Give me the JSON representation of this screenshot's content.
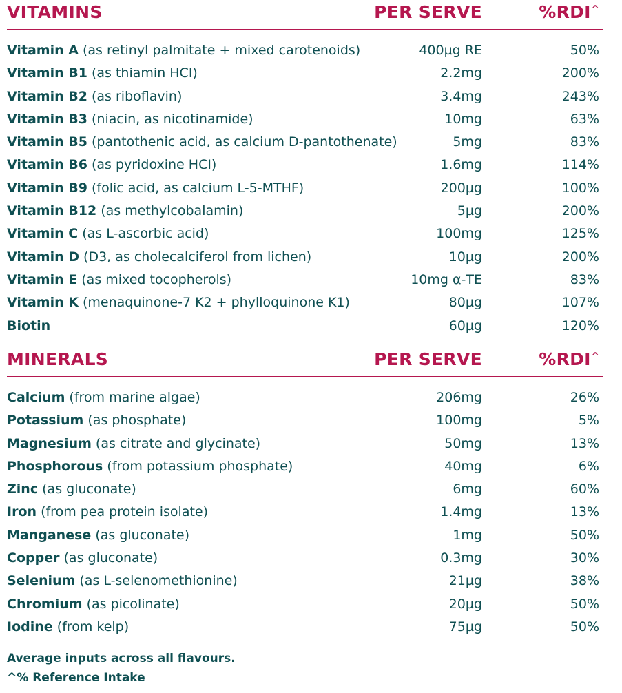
{
  "vitamins": {
    "header": {
      "title": "VITAMINS",
      "per_serve": "PER SERVE",
      "rdi": "%RDI",
      "rdi_mark": "^"
    },
    "rows": [
      {
        "name": "Vitamin A",
        "desc": " (as retinyl palmitate + mixed carotenoids)",
        "serve": "400µg RE",
        "rdi": "50%"
      },
      {
        "name": "Vitamin B1",
        "desc": " (as thiamin HCI)",
        "serve": "2.2mg",
        "rdi": "200%"
      },
      {
        "name": "Vitamin B2",
        "desc": " (as riboflavin)",
        "serve": "3.4mg",
        "rdi": "243%"
      },
      {
        "name": "Vitamin B3",
        "desc": " (niacin, as nicotinamide)",
        "serve": "10mg",
        "rdi": "63%"
      },
      {
        "name": "Vitamin B5",
        "desc": " (pantothenic acid, as calcium D-pantothenate)",
        "serve": "5mg",
        "rdi": "83%"
      },
      {
        "name": "Vitamin B6",
        "desc": " (as pyridoxine HCI)",
        "serve": "1.6mg",
        "rdi": "114%"
      },
      {
        "name": "Vitamin B9",
        "desc": " (folic acid, as calcium L-5-MTHF)",
        "serve": "200µg",
        "rdi": "100%"
      },
      {
        "name": "Vitamin B12",
        "desc": " (as methylcobalamin)",
        "serve": "5µg",
        "rdi": "200%"
      },
      {
        "name": "Vitamin C",
        "desc": " (as L-ascorbic acid)",
        "serve": "100mg",
        "rdi": "125%"
      },
      {
        "name": "Vitamin D",
        "desc": " (D3, as cholecalciferol from lichen)",
        "serve": "10µg",
        "rdi": "200%"
      },
      {
        "name": "Vitamin E",
        "desc": " (as mixed tocopherols)",
        "serve": "10mg α-TE",
        "rdi": "83%"
      },
      {
        "name": "Vitamin K",
        "desc": " (menaquinone-7 K2 + phylloquinone K1)",
        "serve": "80µg",
        "rdi": "107%"
      },
      {
        "name": "Biotin",
        "desc": "",
        "serve": "60µg",
        "rdi": "120%"
      }
    ]
  },
  "minerals": {
    "header": {
      "title": "MINERALS",
      "per_serve": "PER SERVE",
      "rdi": "%RDI",
      "rdi_mark": "^"
    },
    "rows": [
      {
        "name": "Calcium",
        "desc": " (from marine algae)",
        "serve": "206mg",
        "rdi": "26%"
      },
      {
        "name": "Potassium",
        "desc": " (as phosphate)",
        "serve": "100mg",
        "rdi": "5%"
      },
      {
        "name": "Magnesium",
        "desc": " (as citrate and glycinate)",
        "serve": "50mg",
        "rdi": "13%"
      },
      {
        "name": "Phosphorous",
        "desc": " (from potassium phosphate)",
        "serve": "40mg",
        "rdi": "6%"
      },
      {
        "name": "Zinc",
        "desc": " (as gluconate)",
        "serve": "6mg",
        "rdi": "60%"
      },
      {
        "name": "Iron",
        "desc": " (from pea protein isolate)",
        "serve": "1.4mg",
        "rdi": "13%"
      },
      {
        "name": "Manganese",
        "desc": " (as gluconate)",
        "serve": "1mg",
        "rdi": "50%"
      },
      {
        "name": "Copper",
        "desc": " (as gluconate)",
        "serve": "0.3mg",
        "rdi": "30%"
      },
      {
        "name": "Selenium",
        "desc": " (as L-selenomethionine)",
        "serve": "21µg",
        "rdi": "38%"
      },
      {
        "name": "Chromium",
        "desc": " (as picolinate)",
        "serve": "20µg",
        "rdi": "50%"
      },
      {
        "name": "Iodine",
        "desc": " (from kelp)",
        "serve": "75µg",
        "rdi": "50%"
      }
    ]
  },
  "footer": {
    "note": "Average inputs across all flavours.",
    "reference": "^% Reference Intake"
  }
}
